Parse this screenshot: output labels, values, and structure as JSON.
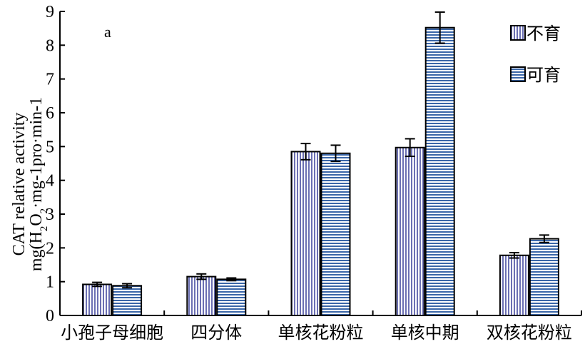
{
  "chart_data": {
    "type": "bar",
    "panel_label": "a",
    "ylabel_line1": "CAT relative activity",
    "ylabel_line2_parts": [
      "mg(H",
      "2",
      "O",
      "2",
      "·mg-1pro·min-1"
    ],
    "ylim": [
      0,
      9
    ],
    "yticks": [
      "0",
      "1",
      "2",
      "3",
      "4",
      "5",
      "6",
      "7",
      "8",
      "9"
    ],
    "categories": [
      "小孢子母细胞",
      "四分体",
      "单核花粉粒",
      "单核中期",
      "双核花粉粒"
    ],
    "series": [
      {
        "name": "不育",
        "pattern": "vertical-stripes",
        "color": "#6b6fb3",
        "values": [
          0.92,
          1.15,
          4.85,
          4.97,
          1.78
        ],
        "errors": [
          0.06,
          0.08,
          0.24,
          0.26,
          0.08
        ]
      },
      {
        "name": "可育",
        "pattern": "horizontal-stripes",
        "color": "#3a66a8",
        "values": [
          0.88,
          1.07,
          4.8,
          8.52,
          2.27
        ],
        "errors": [
          0.06,
          0.04,
          0.24,
          0.46,
          0.11
        ]
      }
    ],
    "legend_position": "top-right",
    "grid": false
  }
}
